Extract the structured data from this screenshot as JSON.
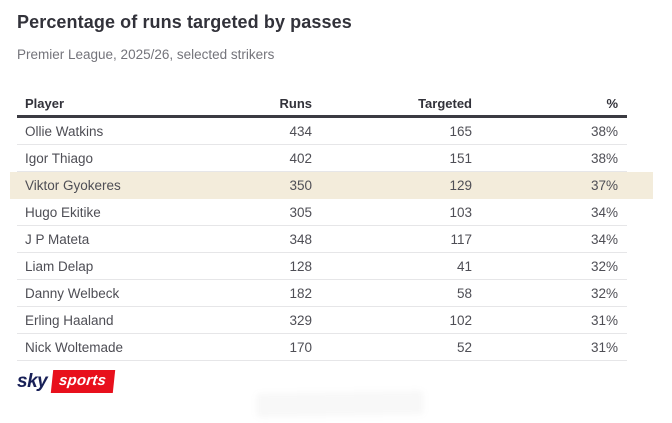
{
  "header": {
    "title": "Percentage of runs targeted by passes",
    "subtitle": "Premier League, 2025/26, selected strikers"
  },
  "chart_data": {
    "type": "table",
    "title": "Percentage of runs targeted by passes",
    "subtitle": "Premier League, 2025/26, selected strikers",
    "columns": [
      "Player",
      "Runs",
      "Targeted",
      "%"
    ],
    "rows": [
      {
        "player": "Ollie Watkins",
        "runs": "434",
        "targeted": "165",
        "pct": "38%",
        "highlight": false
      },
      {
        "player": "Igor Thiago",
        "runs": "402",
        "targeted": "151",
        "pct": "38%",
        "highlight": false
      },
      {
        "player": "Viktor Gyokeres",
        "runs": "350",
        "targeted": "129",
        "pct": "37%",
        "highlight": true
      },
      {
        "player": "Hugo Ekitike",
        "runs": "305",
        "targeted": "103",
        "pct": "34%",
        "highlight": false
      },
      {
        "player": "J P Mateta",
        "runs": "348",
        "targeted": "117",
        "pct": "34%",
        "highlight": false
      },
      {
        "player": "Liam Delap",
        "runs": "128",
        "targeted": "41",
        "pct": "32%",
        "highlight": false
      },
      {
        "player": "Danny Welbeck",
        "runs": "182",
        "targeted": "58",
        "pct": "32%",
        "highlight": false
      },
      {
        "player": "Erling Haaland",
        "runs": "329",
        "targeted": "102",
        "pct": "31%",
        "highlight": false
      },
      {
        "player": "Nick Woltemade",
        "runs": "170",
        "targeted": "52",
        "pct": "31%",
        "highlight": false
      }
    ],
    "highlighted_row": "Viktor Gyokeres",
    "layout": {
      "numeric_columns_right_aligned": true,
      "grid": "row-separators-only"
    }
  },
  "footer": {
    "logo": {
      "sky": "sky",
      "sports": "sports"
    }
  },
  "colors": {
    "highlight_row": "#f3ecdb",
    "header_rule": "#3b3b42",
    "row_separator": "#e6e6e8",
    "title_text": "#32323a",
    "subtitle_text": "#74747b",
    "body_text": "#4e4e55",
    "sky_navy": "#182057",
    "sports_red": "#e8101c"
  }
}
